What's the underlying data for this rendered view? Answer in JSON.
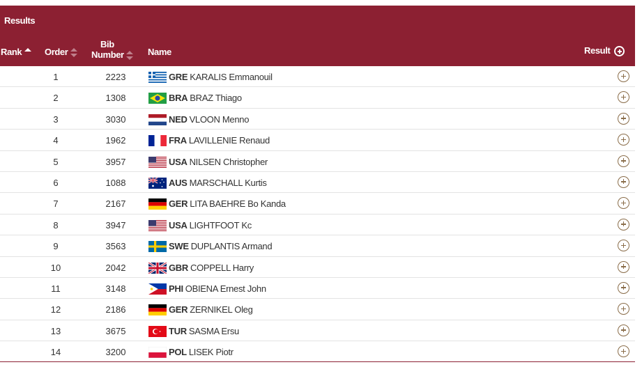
{
  "section_title": "Results",
  "columns": {
    "rank": "Rank",
    "order": "Order",
    "bib_line1": "Bib",
    "bib_line2": "Number",
    "name": "Name",
    "result": "Result"
  },
  "colors": {
    "header_bg": "#8c2032",
    "plus_icon": "#8a6d4a"
  },
  "rows": [
    {
      "order": "1",
      "bib": "2223",
      "noc": "GRE",
      "athlete": "KARALIS Emmanouil",
      "flag": "greece-flag-icon"
    },
    {
      "order": "2",
      "bib": "1308",
      "noc": "BRA",
      "athlete": "BRAZ Thiago",
      "flag": "brazil-flag-icon"
    },
    {
      "order": "3",
      "bib": "3030",
      "noc": "NED",
      "athlete": "VLOON Menno",
      "flag": "netherlands-flag-icon"
    },
    {
      "order": "4",
      "bib": "1962",
      "noc": "FRA",
      "athlete": "LAVILLENIE Renaud",
      "flag": "france-flag-icon"
    },
    {
      "order": "5",
      "bib": "3957",
      "noc": "USA",
      "athlete": "NILSEN Christopher",
      "flag": "usa-flag-icon"
    },
    {
      "order": "6",
      "bib": "1088",
      "noc": "AUS",
      "athlete": "MARSCHALL Kurtis",
      "flag": "australia-flag-icon"
    },
    {
      "order": "7",
      "bib": "2167",
      "noc": "GER",
      "athlete": "LITA BAEHRE Bo Kanda",
      "flag": "germany-flag-icon"
    },
    {
      "order": "8",
      "bib": "3947",
      "noc": "USA",
      "athlete": "LIGHTFOOT Kc",
      "flag": "usa-flag-icon"
    },
    {
      "order": "9",
      "bib": "3563",
      "noc": "SWE",
      "athlete": "DUPLANTIS Armand",
      "flag": "sweden-flag-icon"
    },
    {
      "order": "10",
      "bib": "2042",
      "noc": "GBR",
      "athlete": "COPPELL Harry",
      "flag": "uk-flag-icon"
    },
    {
      "order": "11",
      "bib": "3148",
      "noc": "PHI",
      "athlete": "OBIENA Ernest John",
      "flag": "philippines-flag-icon"
    },
    {
      "order": "12",
      "bib": "2186",
      "noc": "GER",
      "athlete": "ZERNIKEL Oleg",
      "flag": "germany-flag-icon"
    },
    {
      "order": "13",
      "bib": "3675",
      "noc": "TUR",
      "athlete": "SASMA Ersu",
      "flag": "turkey-flag-icon"
    },
    {
      "order": "14",
      "bib": "3200",
      "noc": "POL",
      "athlete": "LISEK Piotr",
      "flag": "poland-flag-icon"
    }
  ]
}
